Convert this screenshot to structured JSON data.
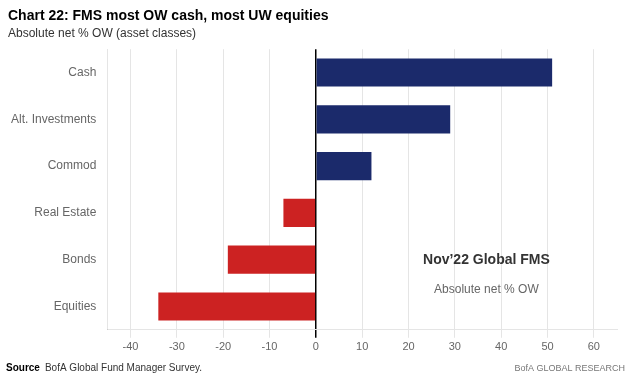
{
  "chart_data": {
    "type": "bar",
    "orientation": "horizontal",
    "title": "Chart 22: FMS most OW cash, most UW equities",
    "subtitle": "Absolute net % OW (asset classes)",
    "categories": [
      "Cash",
      "Alt. Investments",
      "Commod",
      "Real Estate",
      "Bonds",
      "Equities"
    ],
    "values": [
      51,
      29,
      12,
      -7,
      -19,
      -34
    ],
    "colors": [
      "#1b2a6b",
      "#1b2a6b",
      "#1b2a6b",
      "#cc2222",
      "#cc2222",
      "#cc2222"
    ],
    "xlim": [
      -45,
      65
    ],
    "xticks": [
      -40,
      -30,
      -20,
      -10,
      0,
      10,
      20,
      30,
      40,
      50,
      60
    ],
    "grid": true,
    "annotations": [
      "Nov’22 Global FMS",
      "Absolute net % OW"
    ],
    "source_label": "Source",
    "source": "BofA Global Fund Manager Survey.",
    "branding": "BofA GLOBAL RESEARCH"
  }
}
